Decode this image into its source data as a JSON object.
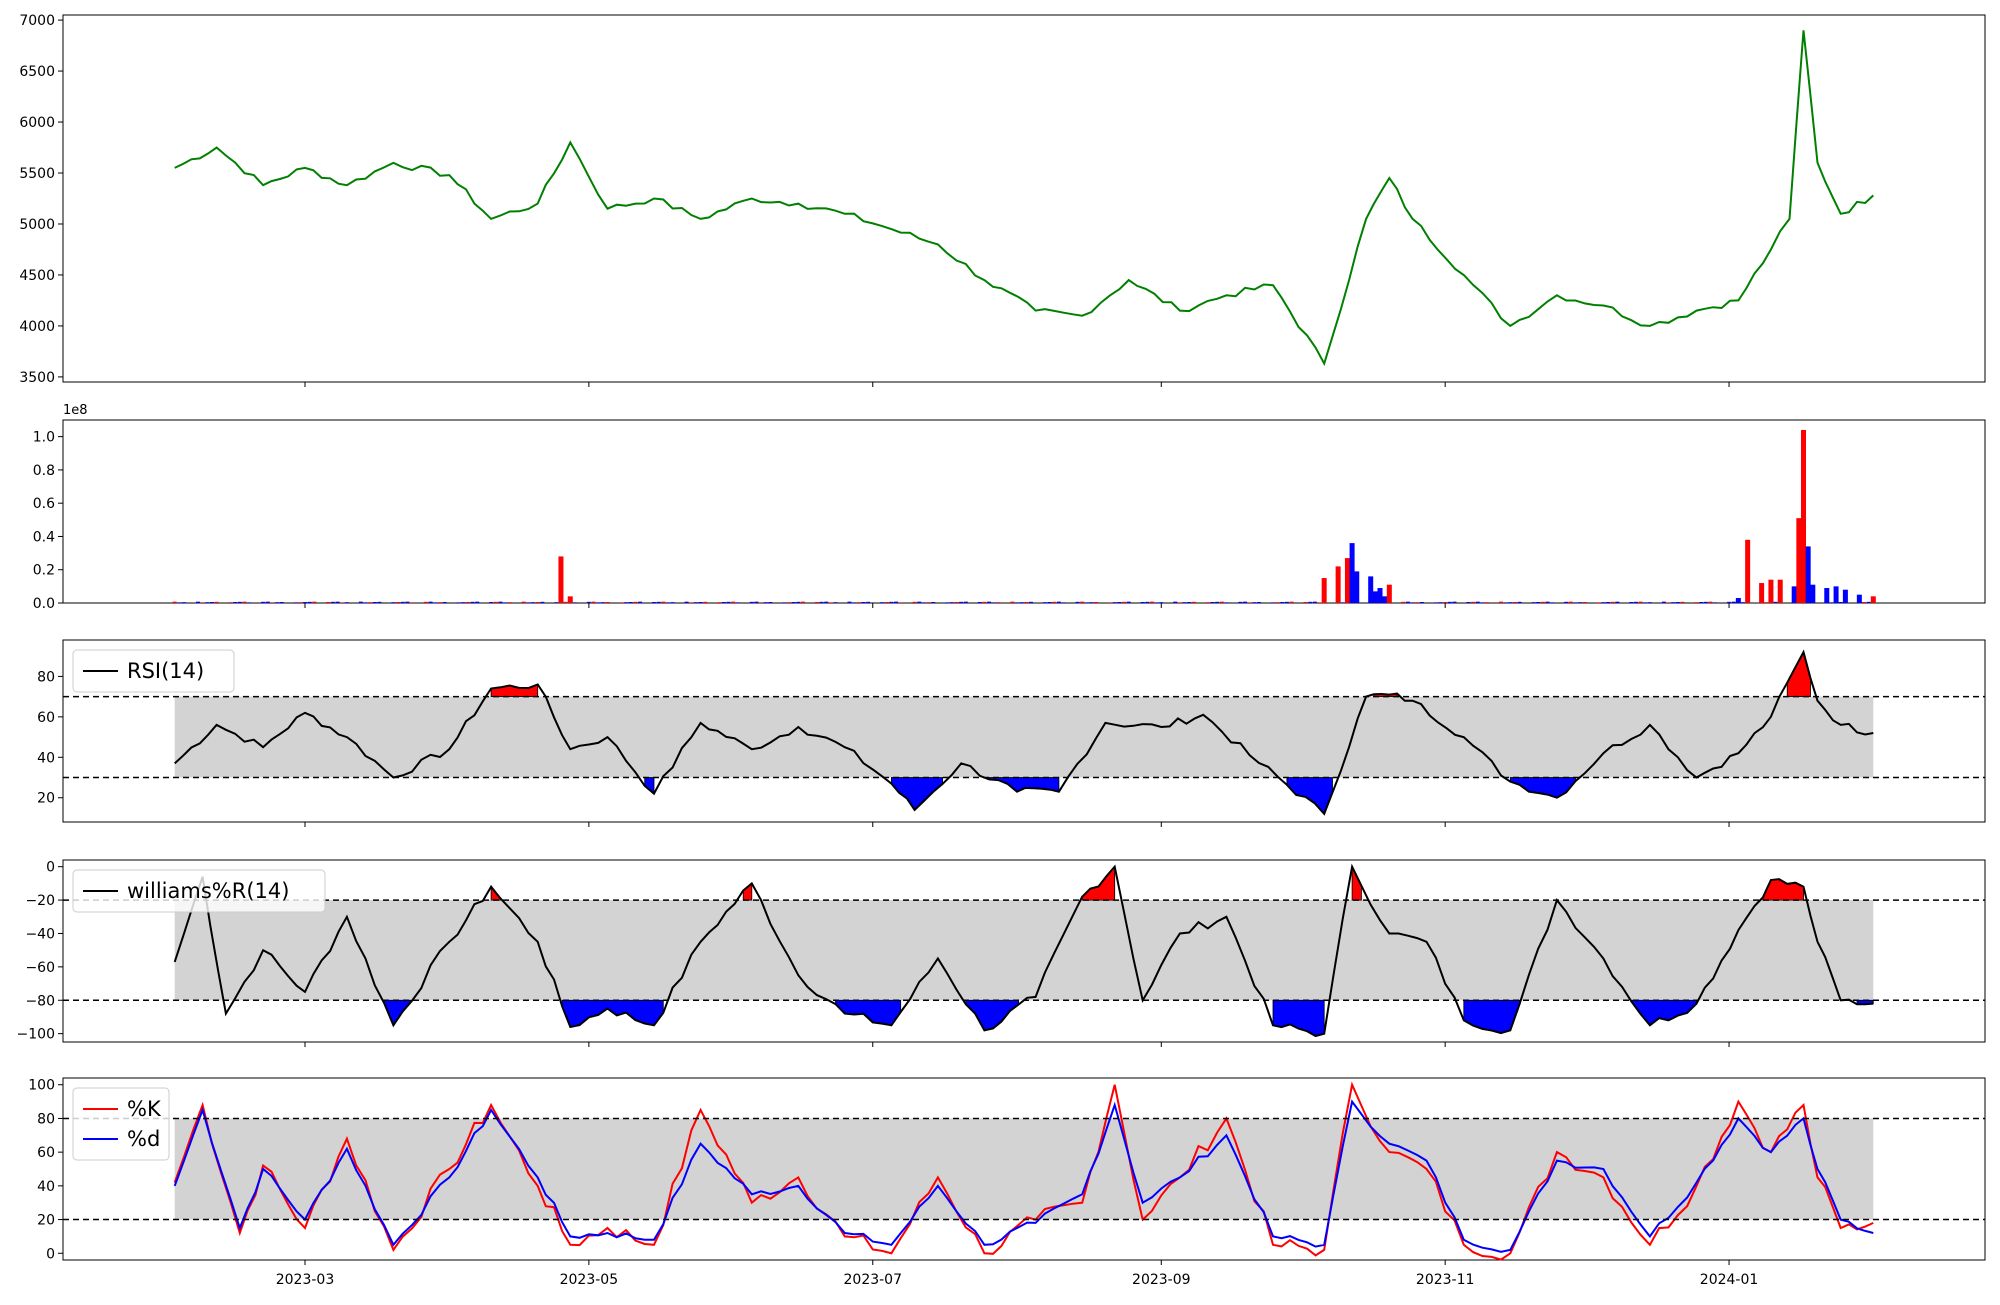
{
  "chart_data": [
    {
      "type": "line",
      "name": "price",
      "color": "#008000",
      "ylim": [
        3450,
        7050
      ],
      "yticks": [
        3500,
        4000,
        4500,
        5000,
        5500,
        6000,
        6500,
        7000
      ],
      "x": [
        "2023-02-01",
        "2023-02-10",
        "2023-02-20",
        "2023-03-01",
        "2023-03-10",
        "2023-03-20",
        "2023-04-01",
        "2023-04-10",
        "2023-04-20",
        "2023-04-27",
        "2023-05-05",
        "2023-05-15",
        "2023-05-25",
        "2023-06-05",
        "2023-06-15",
        "2023-06-25",
        "2023-07-05",
        "2023-07-15",
        "2023-07-25",
        "2023-08-05",
        "2023-08-15",
        "2023-08-25",
        "2023-09-05",
        "2023-09-15",
        "2023-09-25",
        "2023-10-06",
        "2023-10-15",
        "2023-10-20",
        "2023-10-25",
        "2023-11-05",
        "2023-11-15",
        "2023-11-25",
        "2023-12-05",
        "2023-12-15",
        "2023-12-25",
        "2024-01-03",
        "2024-01-10",
        "2024-01-14",
        "2024-01-17",
        "2024-01-20",
        "2024-01-25",
        "2024-02-01"
      ],
      "y": [
        5550,
        5750,
        5380,
        5550,
        5380,
        5600,
        5480,
        5050,
        5200,
        5800,
        5150,
        5250,
        5050,
        5250,
        5200,
        5100,
        4950,
        4800,
        4450,
        4150,
        4100,
        4450,
        4150,
        4300,
        4400,
        3630,
        5050,
        5450,
        5050,
        4500,
        4000,
        4300,
        4200,
        4000,
        4150,
        4250,
        4750,
        5050,
        6900,
        5600,
        5100,
        5280
      ]
    },
    {
      "type": "bar",
      "name": "volume",
      "exponent_label": "1e8",
      "ylim": [
        0,
        1.1
      ],
      "yticks": [
        0.0,
        0.2,
        0.4,
        0.6,
        0.8,
        1.0
      ],
      "ytick_labels": [
        "0.0",
        "0.2",
        "0.4",
        "0.6",
        "0.8",
        "1.0"
      ],
      "x": [
        "2023-04-25",
        "2023-04-27",
        "2023-10-06",
        "2023-10-09",
        "2023-10-11",
        "2023-10-12",
        "2023-10-13",
        "2023-10-16",
        "2023-10-17",
        "2023-10-18",
        "2023-10-19",
        "2023-10-20",
        "2024-01-03",
        "2024-01-05",
        "2024-01-08",
        "2024-01-10",
        "2024-01-12",
        "2024-01-15",
        "2024-01-16",
        "2024-01-17",
        "2024-01-18",
        "2024-01-19",
        "2024-01-22",
        "2024-01-24",
        "2024-01-26",
        "2024-01-29",
        "2024-02-01"
      ],
      "values": [
        0.28,
        0.04,
        0.15,
        0.22,
        0.27,
        0.36,
        0.19,
        0.16,
        0.07,
        0.09,
        0.04,
        0.11,
        0.03,
        0.38,
        0.12,
        0.14,
        0.14,
        0.1,
        0.51,
        1.04,
        0.34,
        0.11,
        0.09,
        0.1,
        0.08,
        0.05,
        0.04
      ],
      "colors": [
        "#ff0000",
        "#ff0000",
        "#ff0000",
        "#ff0000",
        "#ff0000",
        "#0000ff",
        "#0000ff",
        "#0000ff",
        "#0000ff",
        "#0000ff",
        "#0000ff",
        "#ff0000",
        "#0000ff",
        "#ff0000",
        "#ff0000",
        "#ff0000",
        "#ff0000",
        "#0000ff",
        "#ff0000",
        "#ff0000",
        "#0000ff",
        "#0000ff",
        "#0000ff",
        "#0000ff",
        "#0000ff",
        "#0000ff",
        "#ff0000"
      ]
    },
    {
      "type": "line",
      "name": "RSI(14)",
      "color": "#000000",
      "ylim": [
        8,
        98
      ],
      "yticks": [
        20,
        40,
        60,
        80
      ],
      "band": [
        30,
        70
      ],
      "hlines": [
        30,
        70
      ],
      "legend": "top-left",
      "x": [
        "2023-02-01",
        "2023-02-10",
        "2023-02-20",
        "2023-03-01",
        "2023-03-10",
        "2023-03-20",
        "2023-04-01",
        "2023-04-10",
        "2023-04-20",
        "2023-04-27",
        "2023-05-05",
        "2023-05-15",
        "2023-05-25",
        "2023-06-05",
        "2023-06-15",
        "2023-06-25",
        "2023-07-05",
        "2023-07-10",
        "2023-07-20",
        "2023-08-01",
        "2023-08-10",
        "2023-08-20",
        "2023-09-01",
        "2023-09-10",
        "2023-09-20",
        "2023-10-06",
        "2023-10-15",
        "2023-10-20",
        "2023-10-25",
        "2023-11-05",
        "2023-11-15",
        "2023-11-25",
        "2023-12-05",
        "2023-12-15",
        "2023-12-25",
        "2024-01-03",
        "2024-01-10",
        "2024-01-17",
        "2024-01-20",
        "2024-01-25",
        "2024-02-01"
      ],
      "y": [
        37,
        56,
        45,
        62,
        50,
        30,
        44,
        74,
        76,
        44,
        50,
        22,
        57,
        44,
        55,
        45,
        27,
        14,
        37,
        23,
        23,
        57,
        55,
        61,
        41,
        12,
        70,
        71,
        68,
        50,
        28,
        20,
        42,
        56,
        30,
        42,
        60,
        92,
        68,
        56,
        52
      ]
    },
    {
      "type": "line",
      "name": "williams%R(14)",
      "color": "#000000",
      "ylim": [
        -105,
        4
      ],
      "yticks": [
        -100,
        -80,
        -60,
        -40,
        -20,
        0
      ],
      "ytick_labels": [
        "−100",
        "−80",
        "−60",
        "−40",
        "−20",
        "0"
      ],
      "band": [
        -80,
        -20
      ],
      "hlines": [
        -80,
        -20
      ],
      "legend": "top-left",
      "x": [
        "2023-02-01",
        "2023-02-07",
        "2023-02-12",
        "2023-02-20",
        "2023-03-01",
        "2023-03-10",
        "2023-03-20",
        "2023-04-01",
        "2023-04-10",
        "2023-04-20",
        "2023-04-27",
        "2023-05-05",
        "2023-05-15",
        "2023-05-25",
        "2023-06-05",
        "2023-06-15",
        "2023-06-25",
        "2023-07-05",
        "2023-07-15",
        "2023-07-25",
        "2023-08-05",
        "2023-08-15",
        "2023-08-22",
        "2023-08-28",
        "2023-09-05",
        "2023-09-15",
        "2023-09-25",
        "2023-10-06",
        "2023-10-12",
        "2023-10-20",
        "2023-10-28",
        "2023-11-05",
        "2023-11-15",
        "2023-11-25",
        "2023-12-05",
        "2023-12-15",
        "2023-12-25",
        "2024-01-03",
        "2024-01-10",
        "2024-01-17",
        "2024-01-20",
        "2024-01-25",
        "2024-02-01"
      ],
      "y": [
        -57,
        -6,
        -88,
        -50,
        -75,
        -30,
        -95,
        -45,
        -12,
        -45,
        -96,
        -85,
        -95,
        -45,
        -10,
        -65,
        -88,
        -95,
        -55,
        -98,
        -78,
        -18,
        0,
        -80,
        -40,
        -30,
        -95,
        -100,
        0,
        -40,
        -45,
        -92,
        -98,
        -20,
        -55,
        -95,
        -82,
        -38,
        -8,
        -12,
        -45,
        -80,
        -82
      ]
    },
    {
      "type": "line",
      "name": "stochastic",
      "ylim": [
        -4,
        104
      ],
      "yticks": [
        0,
        20,
        40,
        60,
        80,
        100
      ],
      "band": [
        20,
        80
      ],
      "hlines": [
        20,
        80
      ],
      "legend": "top-left",
      "categories": [
        "2023-03",
        "2023-05",
        "2023-07",
        "2023-09",
        "2023-11",
        "2024-01"
      ],
      "series": [
        {
          "name": "%K",
          "color": "#ff0000",
          "x": [
            "2023-02-01",
            "2023-02-07",
            "2023-02-15",
            "2023-02-20",
            "2023-03-01",
            "2023-03-10",
            "2023-03-20",
            "2023-04-01",
            "2023-04-10",
            "2023-04-20",
            "2023-04-27",
            "2023-05-05",
            "2023-05-15",
            "2023-05-25",
            "2023-06-05",
            "2023-06-15",
            "2023-06-25",
            "2023-07-05",
            "2023-07-15",
            "2023-07-25",
            "2023-08-05",
            "2023-08-15",
            "2023-08-22",
            "2023-08-28",
            "2023-09-05",
            "2023-09-15",
            "2023-09-25",
            "2023-10-06",
            "2023-10-12",
            "2023-10-20",
            "2023-10-28",
            "2023-11-05",
            "2023-11-15",
            "2023-11-25",
            "2023-12-05",
            "2023-12-15",
            "2023-12-25",
            "2024-01-03",
            "2024-01-10",
            "2024-01-17",
            "2024-01-20",
            "2024-01-25",
            "2024-02-01"
          ],
          "y": [
            42,
            88,
            12,
            52,
            15,
            68,
            2,
            50,
            88,
            40,
            5,
            15,
            5,
            85,
            30,
            45,
            10,
            0,
            45,
            0,
            20,
            30,
            100,
            20,
            45,
            80,
            5,
            2,
            100,
            60,
            50,
            5,
            0,
            60,
            45,
            5,
            40,
            90,
            60,
            88,
            45,
            15,
            18
          ]
        },
        {
          "name": "%d",
          "color": "#0000ff",
          "x": [
            "2023-02-01",
            "2023-02-07",
            "2023-02-15",
            "2023-02-20",
            "2023-03-01",
            "2023-03-10",
            "2023-03-20",
            "2023-04-01",
            "2023-04-10",
            "2023-04-20",
            "2023-04-27",
            "2023-05-05",
            "2023-05-15",
            "2023-05-25",
            "2023-06-05",
            "2023-06-15",
            "2023-06-25",
            "2023-07-05",
            "2023-07-15",
            "2023-07-25",
            "2023-08-05",
            "2023-08-15",
            "2023-08-22",
            "2023-08-28",
            "2023-09-05",
            "2023-09-15",
            "2023-09-25",
            "2023-10-06",
            "2023-10-12",
            "2023-10-20",
            "2023-10-28",
            "2023-11-05",
            "2023-11-15",
            "2023-11-25",
            "2023-12-05",
            "2023-12-15",
            "2023-12-25",
            "2024-01-03",
            "2024-01-10",
            "2024-01-17",
            "2024-01-20",
            "2024-01-25",
            "2024-02-01"
          ],
          "y": [
            40,
            85,
            15,
            50,
            20,
            62,
            5,
            45,
            85,
            45,
            10,
            12,
            8,
            65,
            35,
            40,
            12,
            5,
            40,
            5,
            18,
            35,
            88,
            30,
            45,
            70,
            10,
            5,
            90,
            65,
            55,
            8,
            2,
            55,
            50,
            10,
            42,
            80,
            60,
            80,
            50,
            20,
            12
          ]
        }
      ]
    }
  ]
}
